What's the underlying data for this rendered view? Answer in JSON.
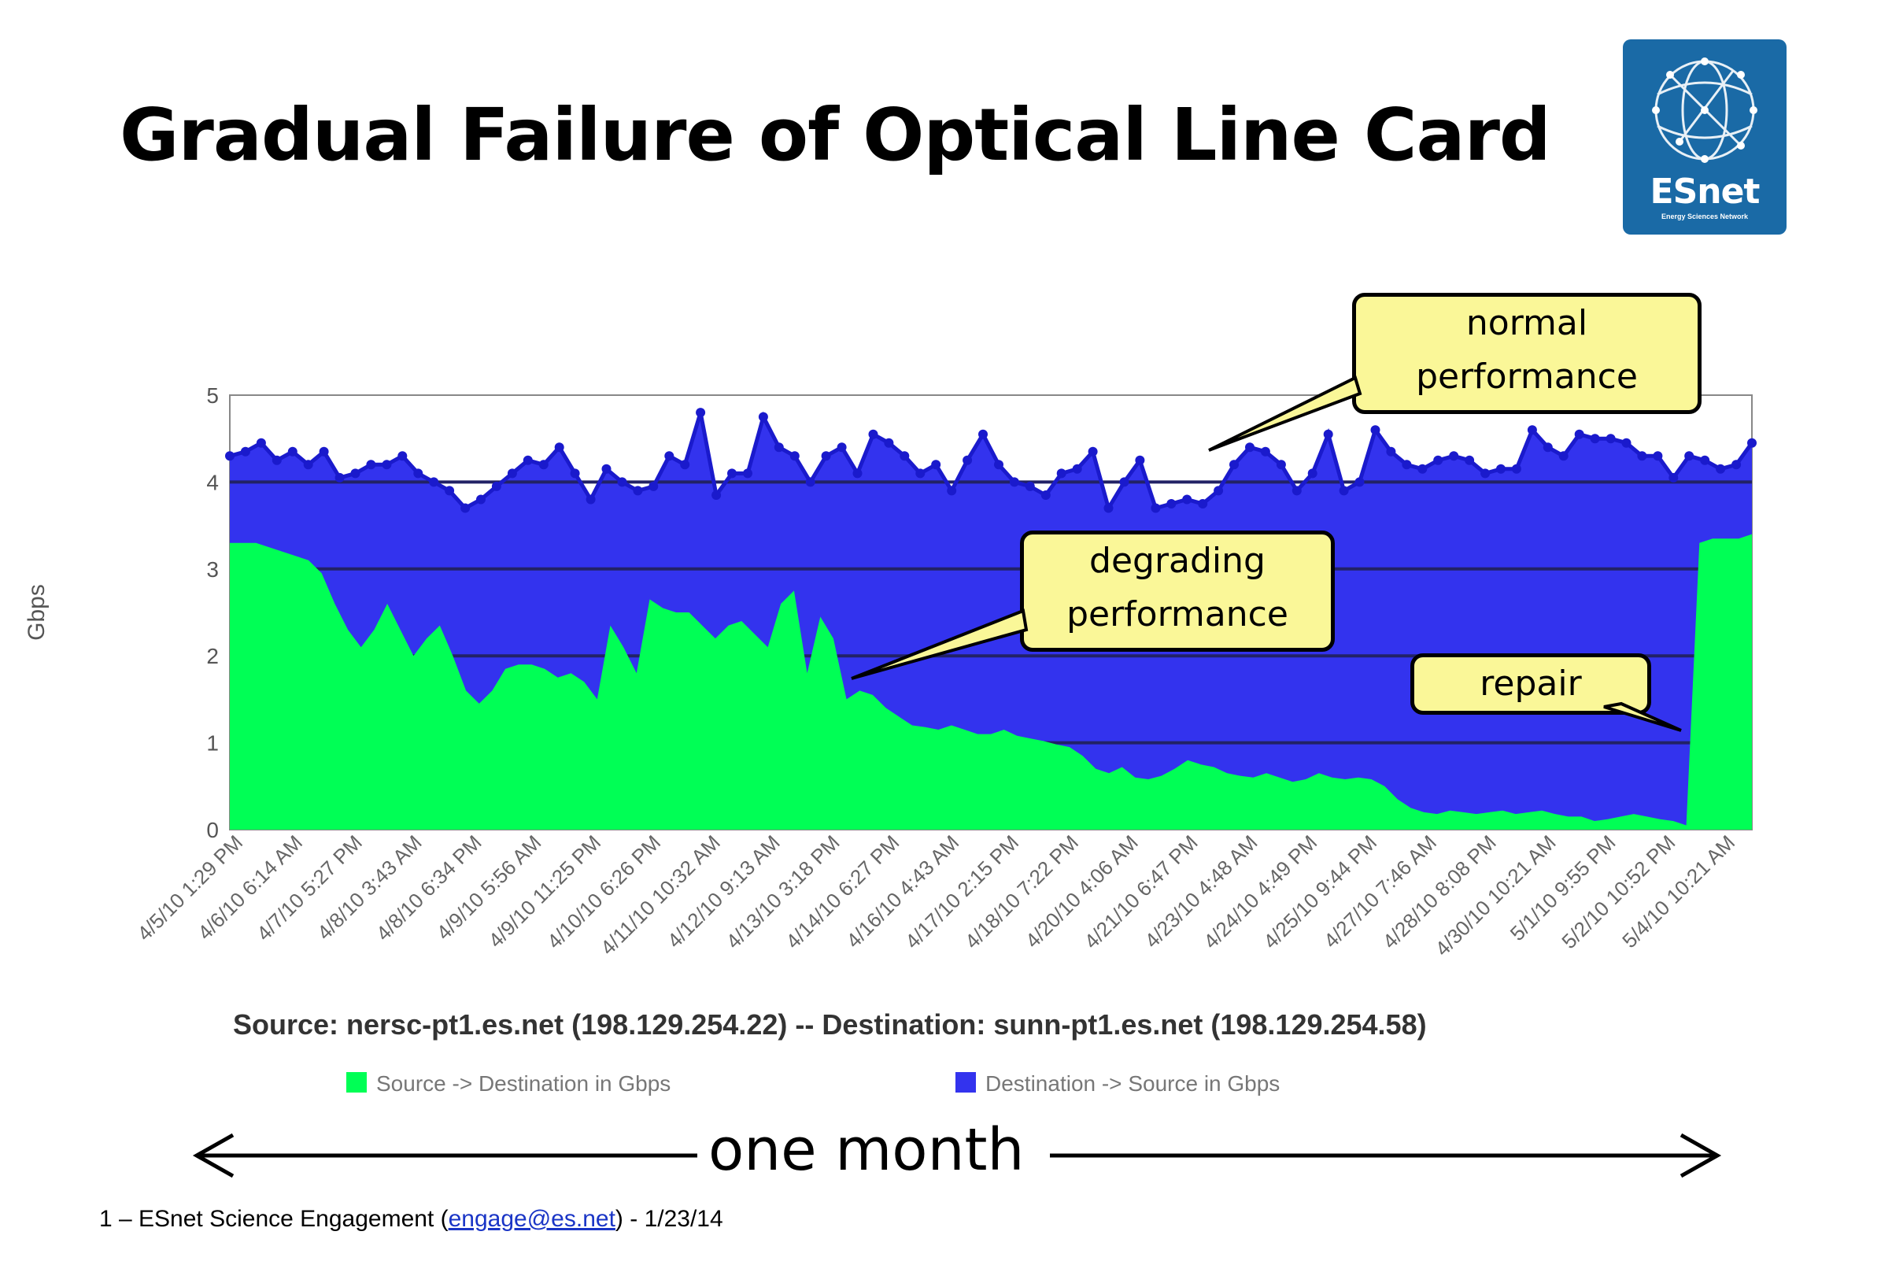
{
  "slide": {
    "title": "Gradual Failure of Optical Line Card",
    "logo_text": "ESnet",
    "logo_subtext": "Energy Sciences Network",
    "span_label": "one month",
    "footer_prefix": "1 – ESnet Science Engagement (",
    "footer_link": "engage@es.net",
    "footer_suffix": ") - 1/23/14"
  },
  "callouts": {
    "normal": [
      "normal",
      "performance"
    ],
    "degrading": [
      "degrading",
      "performance"
    ],
    "repair": [
      "repair"
    ]
  },
  "chart_data": {
    "type": "area",
    "title": "",
    "subtitle": "Source: nersc-pt1.es.net (198.129.254.22)   -- Destination: sunn-pt1.es.net (198.129.254.58)",
    "ylabel": "Gbps",
    "xlabel": "",
    "ylim": [
      0,
      5
    ],
    "yticks": [
      0,
      1,
      2,
      3,
      4,
      5
    ],
    "grid": true,
    "legend_position": "bottom",
    "x_tick_labels": [
      "4/5/10 1:29 PM",
      "4/6/10 6:14 AM",
      "4/7/10 5:27 PM",
      "4/8/10 3:43 AM",
      "4/8/10 6:34 PM",
      "4/9/10 5:56 AM",
      "4/9/10 11:25 PM",
      "4/10/10 6:26 PM",
      "4/11/10 10:32 AM",
      "4/12/10 9:13 AM",
      "4/13/10 3:18 PM",
      "4/14/10 6:27 PM",
      "4/16/10 4:43 AM",
      "4/17/10 2:15 PM",
      "4/18/10 7:22 PM",
      "4/20/10 4:06 AM",
      "4/21/10 6:47 PM",
      "4/23/10 4:48 AM",
      "4/24/10 4:49 PM",
      "4/25/10 9:44 PM",
      "4/27/10 7:46 AM",
      "4/28/10 8:08 PM",
      "4/30/10 10:21 AM",
      "5/1/10 9:55 PM",
      "5/2/10 10:52 PM",
      "5/4/10 10:21 AM"
    ],
    "series": [
      {
        "name": "Source -> Destination in Gbps",
        "color": "#00ff55",
        "values": [
          3.3,
          3.3,
          3.3,
          3.25,
          3.2,
          3.15,
          3.1,
          2.95,
          2.6,
          2.3,
          2.1,
          2.3,
          2.6,
          2.3,
          2.0,
          2.2,
          2.35,
          2.0,
          1.6,
          1.45,
          1.6,
          1.85,
          1.9,
          1.9,
          1.85,
          1.75,
          1.8,
          1.7,
          1.5,
          2.35,
          2.1,
          1.8,
          2.65,
          2.55,
          2.5,
          2.5,
          2.35,
          2.2,
          2.35,
          2.4,
          2.25,
          2.1,
          2.6,
          2.75,
          1.8,
          2.45,
          2.2,
          1.5,
          1.6,
          1.55,
          1.4,
          1.3,
          1.2,
          1.18,
          1.15,
          1.2,
          1.15,
          1.1,
          1.1,
          1.15,
          1.08,
          1.05,
          1.02,
          0.98,
          0.95,
          0.85,
          0.7,
          0.65,
          0.72,
          0.6,
          0.58,
          0.62,
          0.7,
          0.8,
          0.75,
          0.72,
          0.65,
          0.62,
          0.6,
          0.65,
          0.6,
          0.55,
          0.58,
          0.65,
          0.6,
          0.58,
          0.6,
          0.58,
          0.5,
          0.35,
          0.25,
          0.2,
          0.18,
          0.22,
          0.2,
          0.18,
          0.2,
          0.22,
          0.18,
          0.2,
          0.22,
          0.18,
          0.15,
          0.15,
          0.1,
          0.12,
          0.15,
          0.18,
          0.15,
          0.12,
          0.1,
          0.05,
          3.3,
          3.35,
          3.35,
          3.35,
          3.4
        ]
      },
      {
        "name": "Destination -> Source in Gbps",
        "color": "#3333ee",
        "values": [
          4.3,
          4.35,
          4.45,
          4.25,
          4.35,
          4.2,
          4.35,
          4.05,
          4.1,
          4.2,
          4.2,
          4.3,
          4.1,
          4.0,
          3.9,
          3.7,
          3.8,
          3.95,
          4.1,
          4.25,
          4.2,
          4.4,
          4.1,
          3.8,
          4.15,
          4.0,
          3.9,
          3.95,
          4.3,
          4.2,
          4.8,
          3.85,
          4.1,
          4.1,
          4.75,
          4.4,
          4.3,
          4.0,
          4.3,
          4.4,
          4.1,
          4.55,
          4.45,
          4.3,
          4.1,
          4.2,
          3.9,
          4.25,
          4.55,
          4.2,
          4.0,
          3.95,
          3.85,
          4.1,
          4.15,
          4.35,
          3.7,
          4.0,
          4.25,
          3.7,
          3.75,
          3.8,
          3.75,
          3.9,
          4.2,
          4.4,
          4.35,
          4.2,
          3.9,
          4.1,
          4.55,
          3.9,
          4.0,
          4.6,
          4.35,
          4.2,
          4.15,
          4.25,
          4.3,
          4.25,
          4.1,
          4.15,
          4.15,
          4.6,
          4.4,
          4.3,
          4.55,
          4.5,
          4.5,
          4.45,
          4.3,
          4.3,
          4.05,
          4.3,
          4.25,
          4.15,
          4.2,
          4.45
        ]
      }
    ]
  }
}
